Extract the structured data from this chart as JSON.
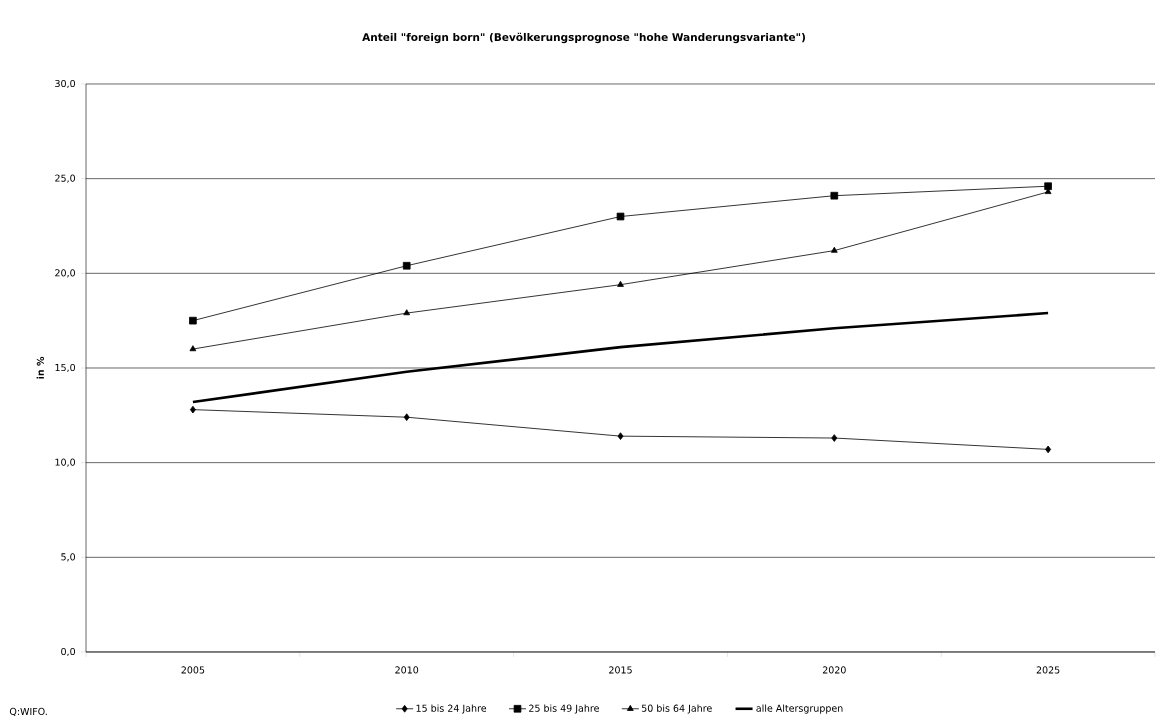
{
  "chart_data": {
    "type": "line",
    "title": "Anteil \"foreign born\" (Bevölkerungsprognose \"hohe  Wanderungsvariante\")",
    "ylabel": "in %",
    "categories": [
      "2005",
      "2010",
      "2015",
      "2020",
      "2025"
    ],
    "series": [
      {
        "name": "15 bis 24 Jahre",
        "color": "#000000",
        "marker": "diamond",
        "values": [
          12.8,
          12.4,
          11.4,
          11.3,
          10.7
        ]
      },
      {
        "name": "25 bis 49 Jahre",
        "color": "#000000",
        "marker": "square",
        "values": [
          17.5,
          20.4,
          23.0,
          24.1,
          24.6
        ]
      },
      {
        "name": "50 bis 64 Jahre",
        "color": "#000000",
        "marker": "triangle",
        "values": [
          16.0,
          17.9,
          19.4,
          21.2,
          24.3
        ]
      },
      {
        "name": "alle Altersgruppen",
        "color": "#000000",
        "marker": "none",
        "values": [
          13.2,
          14.8,
          16.1,
          17.1,
          17.9
        ]
      }
    ],
    "ylim": [
      0,
      30
    ],
    "yticks": [
      {
        "value": 0,
        "label": "0,0"
      },
      {
        "value": 5,
        "label": "5,0"
      },
      {
        "value": 10,
        "label": "10,0"
      },
      {
        "value": 15,
        "label": "15,0"
      },
      {
        "value": 20,
        "label": "20,0"
      },
      {
        "value": 25,
        "label": "25,0"
      },
      {
        "value": 30,
        "label": "30,0"
      }
    ],
    "grid": "y",
    "legend": "bottom",
    "line_style": "solid",
    "annotations": [
      "Q:WIFO."
    ]
  }
}
